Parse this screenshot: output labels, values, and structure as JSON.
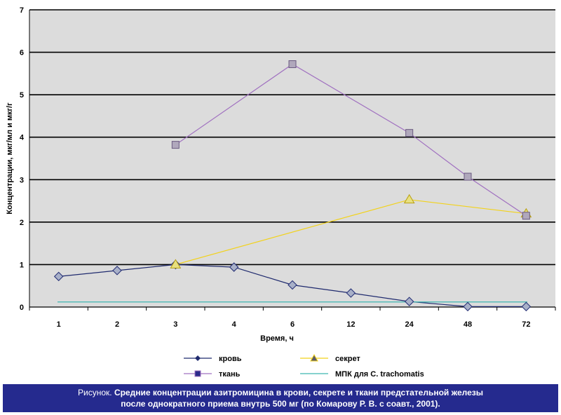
{
  "chart_data": {
    "type": "line",
    "title": "",
    "xlabel": "Время, ч",
    "ylabel": "Концентрации, мкг/мл и мкг/г",
    "categories": [
      "1",
      "2",
      "3",
      "4",
      "6",
      "12",
      "24",
      "48",
      "72"
    ],
    "yticks": [
      "0",
      "1",
      "2",
      "3",
      "4",
      "5",
      "6",
      "7"
    ],
    "ylim": [
      0,
      7
    ],
    "grid": true,
    "legend_position": "bottom",
    "series": [
      {
        "name": "кровь",
        "color": "#1f2a6e",
        "marker": "diamond",
        "values": [
          0.72,
          0.86,
          1.0,
          0.94,
          0.52,
          0.33,
          0.13,
          0.01,
          0.01
        ]
      },
      {
        "name": "секрет",
        "color": "#f2d21a",
        "marker": "triangle",
        "values": [
          null,
          null,
          1.0,
          null,
          null,
          null,
          2.53,
          null,
          2.2
        ]
      },
      {
        "name": "ткань",
        "color": "#a070c0",
        "marker": "square",
        "values": [
          null,
          null,
          3.82,
          null,
          5.72,
          null,
          4.1,
          3.07,
          2.15
        ]
      },
      {
        "name": "МПК для C. trachomatis",
        "color": "#3fb6b0",
        "marker": "none",
        "values": [
          0.12,
          0.12,
          0.12,
          0.12,
          0.12,
          0.12,
          0.12,
          0.12,
          0.12
        ]
      }
    ]
  },
  "caption": {
    "lead": "Рисунок.",
    "line1": "Средние концентрации азитромицина в крови, секрете и ткани предстательной железы",
    "line2": "после однократного приема  внутрь 500 мг (по Комарову Р. В. с соавт., 2001)."
  }
}
